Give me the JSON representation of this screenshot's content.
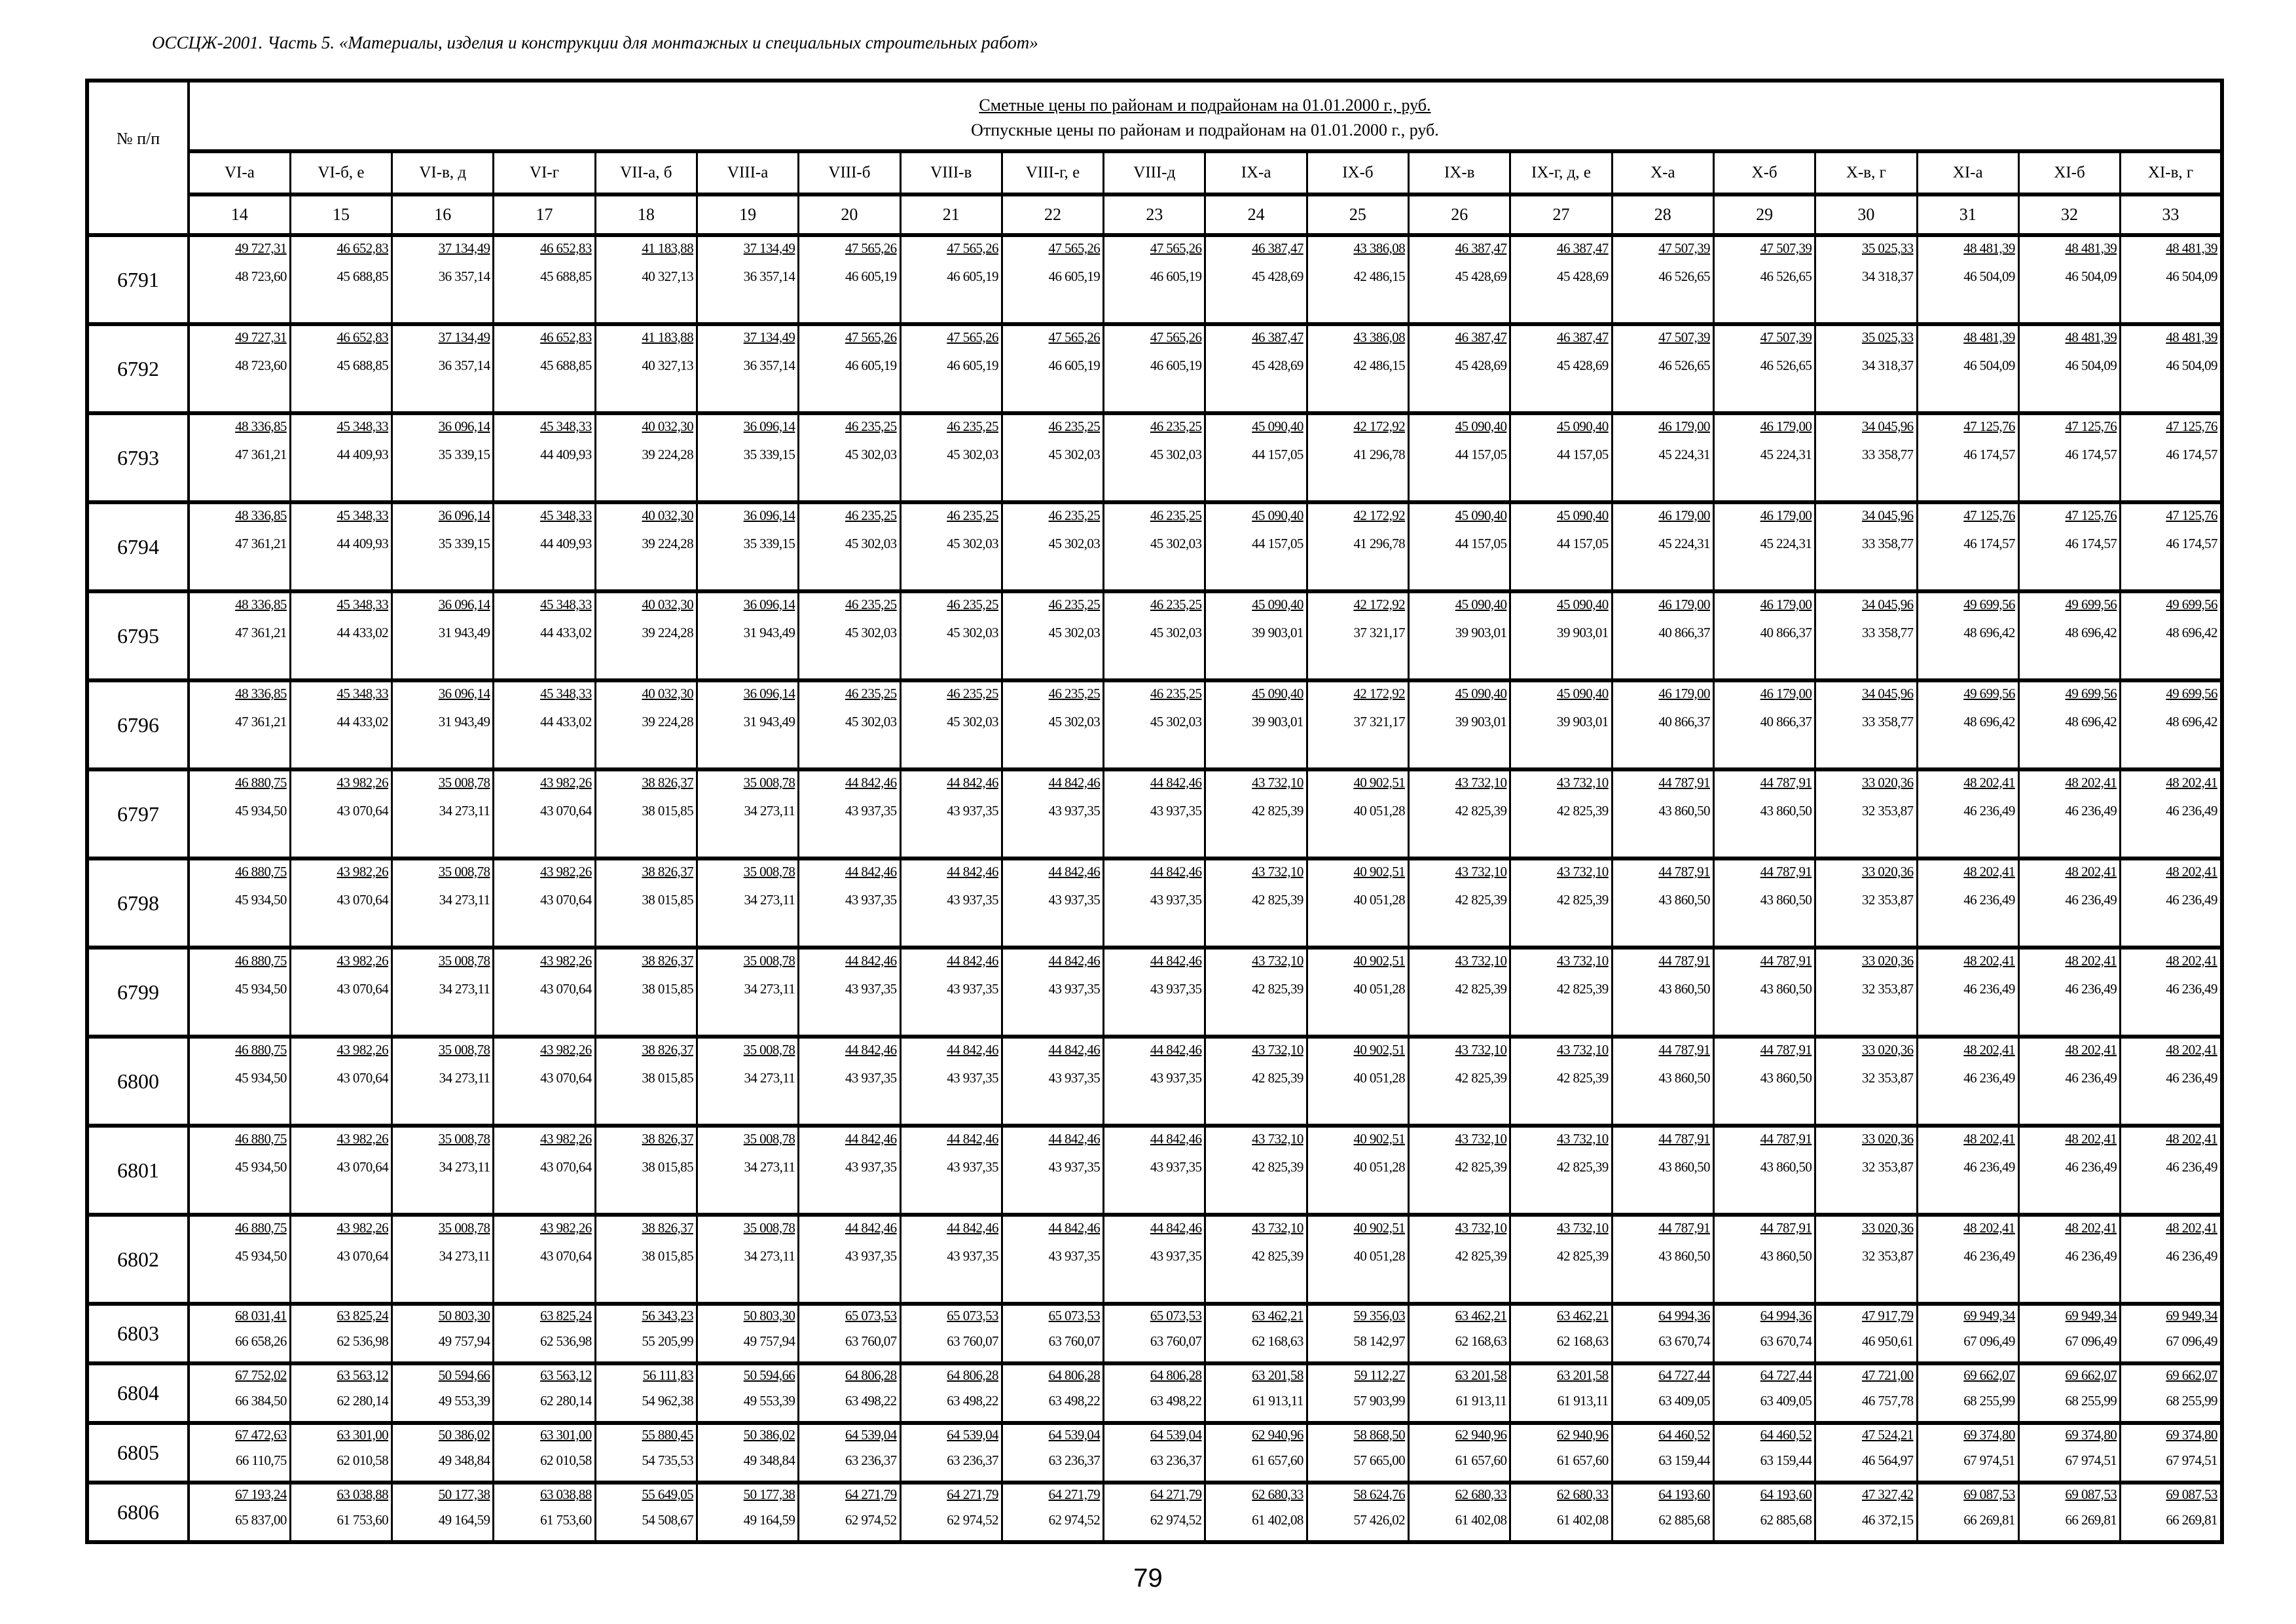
{
  "document_title": "ОССЦЖ-2001. Часть 5. «Материалы, изделия и конструкции для монтажных и специальных строительных работ»",
  "table": {
    "num_header": "№ п/п",
    "title_estimated": "Сметные цены по районам и подрайонам на 01.01.2000 г., руб.",
    "title_release": "Отпускные цены по районам и подрайонам на 01.01.2000 г., руб.",
    "regions": [
      "VI-а",
      "VI-б, е",
      "VI-в, д",
      "VI-г",
      "VII-а, б",
      "VIII-а",
      "VIII-б",
      "VIII-в",
      "VIII-г, е",
      "VIII-д",
      "IX-а",
      "IX-б",
      "IX-в",
      "IX-г, д, е",
      "X-а",
      "X-б",
      "X-в, г",
      "XI-а",
      "XI-б",
      "XI-в, г"
    ],
    "column_numbers": [
      "14",
      "15",
      "16",
      "17",
      "18",
      "19",
      "20",
      "21",
      "22",
      "23",
      "24",
      "25",
      "26",
      "27",
      "28",
      "29",
      "30",
      "31",
      "32",
      "33"
    ],
    "rows": [
      {
        "num": "6791",
        "top": [
          "49 727,31",
          "46 652,83",
          "37 134,49",
          "46 652,83",
          "41 183,88",
          "37 134,49",
          "47 565,26",
          "47 565,26",
          "47 565,26",
          "47 565,26",
          "46 387,47",
          "43 386,08",
          "46 387,47",
          "46 387,47",
          "47 507,39",
          "47 507,39",
          "35 025,33",
          "48 481,39",
          "48 481,39",
          "48 481,39"
        ],
        "bottom": [
          "48 723,60",
          "45 688,85",
          "36 357,14",
          "45 688,85",
          "40 327,13",
          "36 357,14",
          "46 605,19",
          "46 605,19",
          "46 605,19",
          "46 605,19",
          "45 428,69",
          "42 486,15",
          "45 428,69",
          "45 428,69",
          "46 526,65",
          "46 526,65",
          "34 318,37",
          "46 504,09",
          "46 504,09",
          "46 504,09"
        ]
      },
      {
        "num": "6792",
        "top": [
          "49 727,31",
          "46 652,83",
          "37 134,49",
          "46 652,83",
          "41 183,88",
          "37 134,49",
          "47 565,26",
          "47 565,26",
          "47 565,26",
          "47 565,26",
          "46 387,47",
          "43 386,08",
          "46 387,47",
          "46 387,47",
          "47 507,39",
          "47 507,39",
          "35 025,33",
          "48 481,39",
          "48 481,39",
          "48 481,39"
        ],
        "bottom": [
          "48 723,60",
          "45 688,85",
          "36 357,14",
          "45 688,85",
          "40 327,13",
          "36 357,14",
          "46 605,19",
          "46 605,19",
          "46 605,19",
          "46 605,19",
          "45 428,69",
          "42 486,15",
          "45 428,69",
          "45 428,69",
          "46 526,65",
          "46 526,65",
          "34 318,37",
          "46 504,09",
          "46 504,09",
          "46 504,09"
        ]
      },
      {
        "num": "6793",
        "top": [
          "48 336,85",
          "45 348,33",
          "36 096,14",
          "45 348,33",
          "40 032,30",
          "36 096,14",
          "46 235,25",
          "46 235,25",
          "46 235,25",
          "46 235,25",
          "45 090,40",
          "42 172,92",
          "45 090,40",
          "45 090,40",
          "46 179,00",
          "46 179,00",
          "34 045,96",
          "47 125,76",
          "47 125,76",
          "47 125,76"
        ],
        "bottom": [
          "47 361,21",
          "44 409,93",
          "35 339,15",
          "44 409,93",
          "39 224,28",
          "35 339,15",
          "45 302,03",
          "45 302,03",
          "45 302,03",
          "45 302,03",
          "44 157,05",
          "41 296,78",
          "44 157,05",
          "44 157,05",
          "45 224,31",
          "45 224,31",
          "33 358,77",
          "46 174,57",
          "46 174,57",
          "46 174,57"
        ]
      },
      {
        "num": "6794",
        "top": [
          "48 336,85",
          "45 348,33",
          "36 096,14",
          "45 348,33",
          "40 032,30",
          "36 096,14",
          "46 235,25",
          "46 235,25",
          "46 235,25",
          "46 235,25",
          "45 090,40",
          "42 172,92",
          "45 090,40",
          "45 090,40",
          "46 179,00",
          "46 179,00",
          "34 045,96",
          "47 125,76",
          "47 125,76",
          "47 125,76"
        ],
        "bottom": [
          "47 361,21",
          "44 409,93",
          "35 339,15",
          "44 409,93",
          "39 224,28",
          "35 339,15",
          "45 302,03",
          "45 302,03",
          "45 302,03",
          "45 302,03",
          "44 157,05",
          "41 296,78",
          "44 157,05",
          "44 157,05",
          "45 224,31",
          "45 224,31",
          "33 358,77",
          "46 174,57",
          "46 174,57",
          "46 174,57"
        ]
      },
      {
        "num": "6795",
        "top": [
          "48 336,85",
          "45 348,33",
          "36 096,14",
          "45 348,33",
          "40 032,30",
          "36 096,14",
          "46 235,25",
          "46 235,25",
          "46 235,25",
          "46 235,25",
          "45 090,40",
          "42 172,92",
          "45 090,40",
          "45 090,40",
          "46 179,00",
          "46 179,00",
          "34 045,96",
          "49 699,56",
          "49 699,56",
          "49 699,56"
        ],
        "bottom": [
          "47 361,21",
          "44 433,02",
          "31 943,49",
          "44 433,02",
          "39 224,28",
          "31 943,49",
          "45 302,03",
          "45 302,03",
          "45 302,03",
          "45 302,03",
          "39 903,01",
          "37 321,17",
          "39 903,01",
          "39 903,01",
          "40 866,37",
          "40 866,37",
          "33 358,77",
          "48 696,42",
          "48 696,42",
          "48 696,42"
        ]
      },
      {
        "num": "6796",
        "top": [
          "48 336,85",
          "45 348,33",
          "36 096,14",
          "45 348,33",
          "40 032,30",
          "36 096,14",
          "46 235,25",
          "46 235,25",
          "46 235,25",
          "46 235,25",
          "45 090,40",
          "42 172,92",
          "45 090,40",
          "45 090,40",
          "46 179,00",
          "46 179,00",
          "34 045,96",
          "49 699,56",
          "49 699,56",
          "49 699,56"
        ],
        "bottom": [
          "47 361,21",
          "44 433,02",
          "31 943,49",
          "44 433,02",
          "39 224,28",
          "31 943,49",
          "45 302,03",
          "45 302,03",
          "45 302,03",
          "45 302,03",
          "39 903,01",
          "37 321,17",
          "39 903,01",
          "39 903,01",
          "40 866,37",
          "40 866,37",
          "33 358,77",
          "48 696,42",
          "48 696,42",
          "48 696,42"
        ]
      },
      {
        "num": "6797",
        "top": [
          "46 880,75",
          "43 982,26",
          "35 008,78",
          "43 982,26",
          "38 826,37",
          "35 008,78",
          "44 842,46",
          "44 842,46",
          "44 842,46",
          "44 842,46",
          "43 732,10",
          "40 902,51",
          "43 732,10",
          "43 732,10",
          "44 787,91",
          "44 787,91",
          "33 020,36",
          "48 202,41",
          "48 202,41",
          "48 202,41"
        ],
        "bottom": [
          "45 934,50",
          "43 070,64",
          "34 273,11",
          "43 070,64",
          "38 015,85",
          "34 273,11",
          "43 937,35",
          "43 937,35",
          "43 937,35",
          "43 937,35",
          "42 825,39",
          "40 051,28",
          "42 825,39",
          "42 825,39",
          "43 860,50",
          "43 860,50",
          "32 353,87",
          "46 236,49",
          "46 236,49",
          "46 236,49"
        ]
      },
      {
        "num": "6798",
        "top": [
          "46 880,75",
          "43 982,26",
          "35 008,78",
          "43 982,26",
          "38 826,37",
          "35 008,78",
          "44 842,46",
          "44 842,46",
          "44 842,46",
          "44 842,46",
          "43 732,10",
          "40 902,51",
          "43 732,10",
          "43 732,10",
          "44 787,91",
          "44 787,91",
          "33 020,36",
          "48 202,41",
          "48 202,41",
          "48 202,41"
        ],
        "bottom": [
          "45 934,50",
          "43 070,64",
          "34 273,11",
          "43 070,64",
          "38 015,85",
          "34 273,11",
          "43 937,35",
          "43 937,35",
          "43 937,35",
          "43 937,35",
          "42 825,39",
          "40 051,28",
          "42 825,39",
          "42 825,39",
          "43 860,50",
          "43 860,50",
          "32 353,87",
          "46 236,49",
          "46 236,49",
          "46 236,49"
        ]
      },
      {
        "num": "6799",
        "top": [
          "46 880,75",
          "43 982,26",
          "35 008,78",
          "43 982,26",
          "38 826,37",
          "35 008,78",
          "44 842,46",
          "44 842,46",
          "44 842,46",
          "44 842,46",
          "43 732,10",
          "40 902,51",
          "43 732,10",
          "43 732,10",
          "44 787,91",
          "44 787,91",
          "33 020,36",
          "48 202,41",
          "48 202,41",
          "48 202,41"
        ],
        "bottom": [
          "45 934,50",
          "43 070,64",
          "34 273,11",
          "43 070,64",
          "38 015,85",
          "34 273,11",
          "43 937,35",
          "43 937,35",
          "43 937,35",
          "43 937,35",
          "42 825,39",
          "40 051,28",
          "42 825,39",
          "42 825,39",
          "43 860,50",
          "43 860,50",
          "32 353,87",
          "46 236,49",
          "46 236,49",
          "46 236,49"
        ]
      },
      {
        "num": "6800",
        "top": [
          "46 880,75",
          "43 982,26",
          "35 008,78",
          "43 982,26",
          "38 826,37",
          "35 008,78",
          "44 842,46",
          "44 842,46",
          "44 842,46",
          "44 842,46",
          "43 732,10",
          "40 902,51",
          "43 732,10",
          "43 732,10",
          "44 787,91",
          "44 787,91",
          "33 020,36",
          "48 202,41",
          "48 202,41",
          "48 202,41"
        ],
        "bottom": [
          "45 934,50",
          "43 070,64",
          "34 273,11",
          "43 070,64",
          "38 015,85",
          "34 273,11",
          "43 937,35",
          "43 937,35",
          "43 937,35",
          "43 937,35",
          "42 825,39",
          "40 051,28",
          "42 825,39",
          "42 825,39",
          "43 860,50",
          "43 860,50",
          "32 353,87",
          "46 236,49",
          "46 236,49",
          "46 236,49"
        ]
      },
      {
        "num": "6801",
        "top": [
          "46 880,75",
          "43 982,26",
          "35 008,78",
          "43 982,26",
          "38 826,37",
          "35 008,78",
          "44 842,46",
          "44 842,46",
          "44 842,46",
          "44 842,46",
          "43 732,10",
          "40 902,51",
          "43 732,10",
          "43 732,10",
          "44 787,91",
          "44 787,91",
          "33 020,36",
          "48 202,41",
          "48 202,41",
          "48 202,41"
        ],
        "bottom": [
          "45 934,50",
          "43 070,64",
          "34 273,11",
          "43 070,64",
          "38 015,85",
          "34 273,11",
          "43 937,35",
          "43 937,35",
          "43 937,35",
          "43 937,35",
          "42 825,39",
          "40 051,28",
          "42 825,39",
          "42 825,39",
          "43 860,50",
          "43 860,50",
          "32 353,87",
          "46 236,49",
          "46 236,49",
          "46 236,49"
        ]
      },
      {
        "num": "6802",
        "top": [
          "46 880,75",
          "43 982,26",
          "35 008,78",
          "43 982,26",
          "38 826,37",
          "35 008,78",
          "44 842,46",
          "44 842,46",
          "44 842,46",
          "44 842,46",
          "43 732,10",
          "40 902,51",
          "43 732,10",
          "43 732,10",
          "44 787,91",
          "44 787,91",
          "33 020,36",
          "48 202,41",
          "48 202,41",
          "48 202,41"
        ],
        "bottom": [
          "45 934,50",
          "43 070,64",
          "34 273,11",
          "43 070,64",
          "38 015,85",
          "34 273,11",
          "43 937,35",
          "43 937,35",
          "43 937,35",
          "43 937,35",
          "42 825,39",
          "40 051,28",
          "42 825,39",
          "42 825,39",
          "43 860,50",
          "43 860,50",
          "32 353,87",
          "46 236,49",
          "46 236,49",
          "46 236,49"
        ]
      },
      {
        "num": "6803",
        "top": [
          "68 031,41",
          "63 825,24",
          "50 803,30",
          "63 825,24",
          "56 343,23",
          "50 803,30",
          "65 073,53",
          "65 073,53",
          "65 073,53",
          "65 073,53",
          "63 462,21",
          "59 356,03",
          "63 462,21",
          "63 462,21",
          "64 994,36",
          "64 994,36",
          "47 917,79",
          "69 949,34",
          "69 949,34",
          "69 949,34"
        ],
        "bottom": [
          "66 658,26",
          "62 536,98",
          "49 757,94",
          "62 536,98",
          "55 205,99",
          "49 757,94",
          "63 760,07",
          "63 760,07",
          "63 760,07",
          "63 760,07",
          "62 168,63",
          "58 142,97",
          "62 168,63",
          "62 168,63",
          "63 670,74",
          "63 670,74",
          "46 950,61",
          "67 096,49",
          "67 096,49",
          "67 096,49"
        ]
      },
      {
        "num": "6804",
        "top": [
          "67 752,02",
          "63 563,12",
          "50 594,66",
          "63 563,12",
          "56 111,83",
          "50 594,66",
          "64 806,28",
          "64 806,28",
          "64 806,28",
          "64 806,28",
          "63 201,58",
          "59 112,27",
          "63 201,58",
          "63 201,58",
          "64 727,44",
          "64 727,44",
          "47 721,00",
          "69 662,07",
          "69 662,07",
          "69 662,07"
        ],
        "bottom": [
          "66 384,50",
          "62 280,14",
          "49 553,39",
          "62 280,14",
          "54 962,38",
          "49 553,39",
          "63 498,22",
          "63 498,22",
          "63 498,22",
          "63 498,22",
          "61 913,11",
          "57 903,99",
          "61 913,11",
          "61 913,11",
          "63 409,05",
          "63 409,05",
          "46 757,78",
          "68 255,99",
          "68 255,99",
          "68 255,99"
        ]
      },
      {
        "num": "6805",
        "top": [
          "67 472,63",
          "63 301,00",
          "50 386,02",
          "63 301,00",
          "55 880,45",
          "50 386,02",
          "64 539,04",
          "64 539,04",
          "64 539,04",
          "64 539,04",
          "62 940,96",
          "58 868,50",
          "62 940,96",
          "62 940,96",
          "64 460,52",
          "64 460,52",
          "47 524,21",
          "69 374,80",
          "69 374,80",
          "69 374,80"
        ],
        "bottom": [
          "66 110,75",
          "62 010,58",
          "49 348,84",
          "62 010,58",
          "54 735,53",
          "49 348,84",
          "63 236,37",
          "63 236,37",
          "63 236,37",
          "63 236,37",
          "61 657,60",
          "57 665,00",
          "61 657,60",
          "61 657,60",
          "63 159,44",
          "63 159,44",
          "46 564,97",
          "67 974,51",
          "67 974,51",
          "67 974,51"
        ]
      },
      {
        "num": "6806",
        "top": [
          "67 193,24",
          "63 038,88",
          "50 177,38",
          "63 038,88",
          "55 649,05",
          "50 177,38",
          "64 271,79",
          "64 271,79",
          "64 271,79",
          "64 271,79",
          "62 680,33",
          "58 624,76",
          "62 680,33",
          "62 680,33",
          "64 193,60",
          "64 193,60",
          "47 327,42",
          "69 087,53",
          "69 087,53",
          "69 087,53"
        ],
        "bottom": [
          "65 837,00",
          "61 753,60",
          "49 164,59",
          "61 753,60",
          "54 508,67",
          "49 164,59",
          "62 974,52",
          "62 974,52",
          "62 974,52",
          "62 974,52",
          "61 402,08",
          "57 426,02",
          "61 402,08",
          "61 402,08",
          "62 885,68",
          "62 885,68",
          "46 372,15",
          "66 269,81",
          "66 269,81",
          "66 269,81"
        ]
      }
    ]
  },
  "page_number": "79"
}
